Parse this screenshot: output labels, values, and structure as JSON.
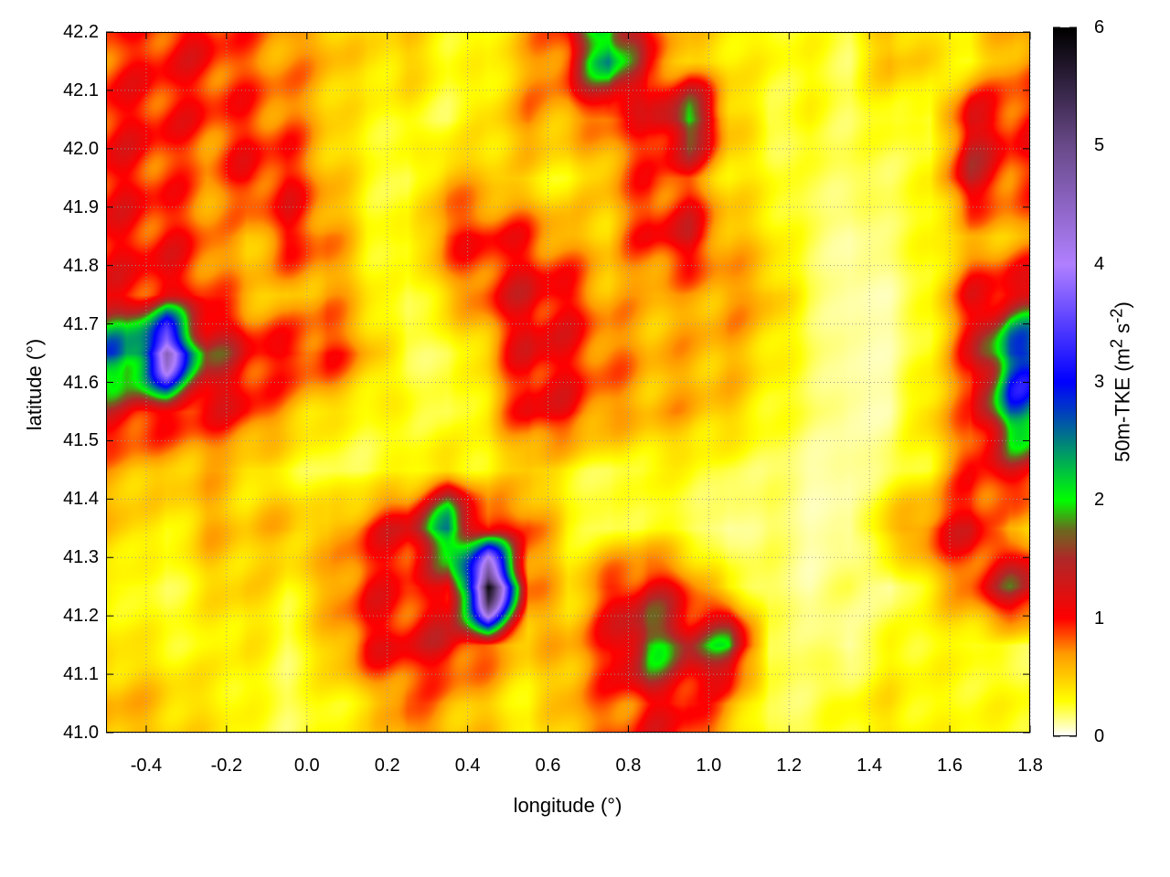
{
  "chart_data": {
    "type": "heatmap",
    "xlabel": "longitude (°)",
    "ylabel": "latitude (°)",
    "colorbar_label": "50m-TKE (m",
    "colorbar_label_sup1": "2",
    "colorbar_label_mid": " s",
    "colorbar_label_sup2": "-2",
    "colorbar_label_end": ")",
    "xlim": [
      -0.5,
      1.8
    ],
    "ylim": [
      41.0,
      42.2
    ],
    "zlim": [
      0,
      6
    ],
    "grid": "dotted",
    "x_ticks": [
      "-0.4",
      "-0.2",
      "0.0",
      "0.2",
      "0.4",
      "0.6",
      "0.8",
      "1.0",
      "1.2",
      "1.4",
      "1.6",
      "1.8"
    ],
    "x_tick_values": [
      -0.4,
      -0.2,
      0.0,
      0.2,
      0.4,
      0.6,
      0.8,
      1.0,
      1.2,
      1.4,
      1.6,
      1.8
    ],
    "y_ticks": [
      "41.0",
      "41.1",
      "41.2",
      "41.3",
      "41.4",
      "41.5",
      "41.6",
      "41.7",
      "41.8",
      "41.9",
      "42.0",
      "42.1",
      "42.2"
    ],
    "y_tick_values": [
      41.0,
      41.1,
      41.2,
      41.3,
      41.4,
      41.5,
      41.6,
      41.7,
      41.8,
      41.9,
      42.0,
      42.1,
      42.2
    ],
    "colorbar_ticks": [
      "0",
      "1",
      "2",
      "3",
      "4",
      "5",
      "6"
    ],
    "colorbar_tick_values": [
      0,
      1,
      2,
      3,
      4,
      5,
      6
    ],
    "palette": [
      {
        "v": 0,
        "c": "#ffffff"
      },
      {
        "v": 0.3,
        "c": "#ffff00"
      },
      {
        "v": 0.7,
        "c": "#ff9900"
      },
      {
        "v": 1.0,
        "c": "#ff0000"
      },
      {
        "v": 1.5,
        "c": "#b02828"
      },
      {
        "v": 1.75,
        "c": "#6a6a20"
      },
      {
        "v": 2.0,
        "c": "#00ff00"
      },
      {
        "v": 2.5,
        "c": "#008080"
      },
      {
        "v": 3.0,
        "c": "#0000ff"
      },
      {
        "v": 4.0,
        "c": "#b080ff"
      },
      {
        "v": 5.0,
        "c": "#6a4a8a"
      },
      {
        "v": 6.0,
        "c": "#000000"
      }
    ],
    "grid_lon": [
      -0.45,
      -0.35,
      -0.25,
      -0.15,
      -0.05,
      0.05,
      0.15,
      0.25,
      0.35,
      0.45,
      0.55,
      0.65,
      0.75,
      0.85,
      0.95,
      1.05,
      1.15,
      1.25,
      1.35,
      1.45,
      1.55,
      1.65,
      1.75
    ],
    "grid_lat": [
      42.15,
      42.05,
      41.95,
      41.85,
      41.75,
      41.65,
      41.55,
      41.45,
      41.35,
      41.25,
      41.15,
      41.05
    ],
    "values": [
      [
        0.9,
        1.0,
        1.0,
        0.8,
        0.7,
        0.6,
        0.4,
        0.5,
        0.3,
        0.3,
        0.6,
        1.0,
        2.5,
        0.9,
        0.5,
        0.4,
        0.3,
        0.3,
        0.2,
        0.6,
        0.4,
        0.3,
        0.7
      ],
      [
        1.0,
        1.0,
        0.9,
        0.9,
        0.8,
        0.5,
        0.3,
        0.3,
        0.2,
        0.4,
        0.7,
        0.6,
        0.8,
        1.0,
        2.0,
        0.6,
        0.2,
        0.3,
        0.2,
        0.3,
        0.2,
        1.2,
        1.0
      ],
      [
        1.0,
        0.9,
        0.7,
        1.0,
        1.0,
        0.6,
        0.3,
        0.2,
        0.6,
        0.5,
        0.4,
        0.3,
        0.6,
        0.9,
        0.8,
        0.4,
        0.3,
        0.2,
        0.2,
        0.2,
        0.3,
        1.3,
        0.9
      ],
      [
        1.0,
        1.0,
        0.8,
        0.5,
        1.0,
        0.8,
        0.3,
        0.3,
        0.9,
        1.0,
        0.9,
        0.6,
        0.5,
        1.0,
        1.2,
        0.6,
        0.4,
        0.2,
        0.1,
        0.2,
        0.3,
        0.5,
        0.6
      ],
      [
        1.0,
        1.1,
        0.9,
        0.6,
        0.5,
        0.7,
        0.4,
        0.2,
        0.5,
        0.9,
        1.2,
        1.0,
        0.6,
        0.6,
        0.6,
        0.7,
        0.6,
        0.2,
        0.1,
        0.1,
        0.3,
        1.0,
        1.2
      ],
      [
        2.5,
        4.5,
        1.6,
        1.1,
        1.0,
        1.0,
        0.6,
        0.2,
        0.2,
        0.5,
        1.2,
        1.0,
        0.8,
        0.6,
        0.6,
        0.6,
        0.4,
        0.2,
        0.1,
        0.1,
        0.3,
        1.0,
        2.8
      ],
      [
        1.2,
        1.0,
        1.0,
        1.0,
        0.6,
        0.4,
        0.3,
        0.3,
        0.2,
        0.4,
        1.1,
        1.0,
        0.7,
        0.6,
        0.6,
        0.5,
        0.3,
        0.2,
        0.1,
        0.1,
        0.5,
        0.8,
        2.5
      ],
      [
        0.6,
        0.5,
        0.6,
        0.4,
        0.3,
        0.2,
        0.2,
        0.3,
        0.4,
        0.3,
        0.5,
        0.3,
        0.2,
        0.3,
        0.3,
        0.2,
        0.2,
        0.1,
        0.1,
        0.2,
        0.3,
        0.9,
        1.1
      ],
      [
        0.5,
        0.3,
        0.6,
        0.5,
        0.6,
        0.5,
        0.9,
        1.2,
        2.5,
        1.0,
        0.9,
        0.3,
        0.2,
        0.3,
        0.2,
        0.1,
        0.2,
        0.1,
        0.1,
        0.5,
        0.9,
        1.2,
        0.5
      ],
      [
        0.3,
        0.2,
        0.4,
        0.5,
        0.3,
        0.6,
        1.0,
        0.9,
        1.0,
        6.0,
        0.8,
        0.4,
        0.9,
        1.2,
        0.8,
        0.3,
        0.2,
        0.1,
        0.2,
        0.1,
        0.4,
        0.8,
        1.5
      ],
      [
        0.4,
        0.3,
        0.3,
        0.4,
        0.2,
        0.5,
        1.0,
        1.1,
        1.2,
        0.8,
        0.5,
        0.6,
        1.0,
        2.0,
        1.5,
        1.8,
        0.2,
        0.2,
        0.1,
        0.3,
        0.3,
        0.3,
        0.2
      ],
      [
        0.6,
        0.5,
        0.4,
        0.3,
        0.2,
        0.3,
        0.4,
        0.8,
        0.6,
        0.5,
        0.3,
        0.6,
        0.8,
        1.0,
        1.0,
        0.6,
        0.2,
        0.2,
        0.3,
        0.4,
        0.3,
        0.3,
        0.3
      ]
    ]
  }
}
